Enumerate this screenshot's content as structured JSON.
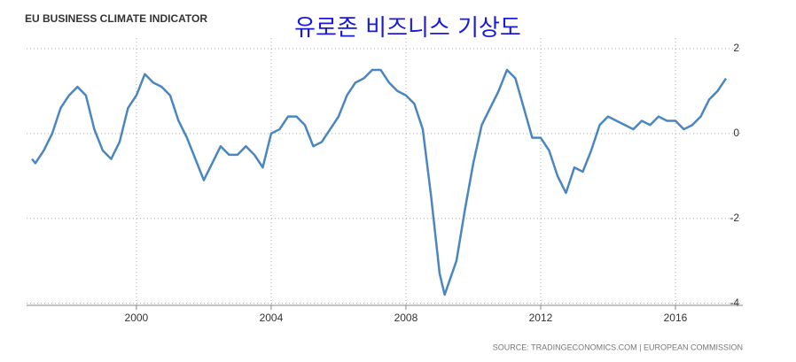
{
  "chart_data": {
    "type": "line",
    "title": "EU BUSINESS CLIMATE INDICATOR",
    "subtitle": "유로존 비즈니스 기상도",
    "source": "SOURCE: TRADINGECONOMICS.COM  |  EUROPEAN COMMISSION",
    "x": [
      1996.9,
      1997.0,
      1997.25,
      1997.5,
      1997.75,
      1998.0,
      1998.25,
      1998.5,
      1998.75,
      1999.0,
      1999.25,
      1999.5,
      1999.75,
      2000.0,
      2000.25,
      2000.5,
      2000.75,
      2001.0,
      2001.25,
      2001.5,
      2001.75,
      2002.0,
      2002.25,
      2002.5,
      2002.75,
      2003.0,
      2003.25,
      2003.5,
      2003.75,
      2004.0,
      2004.25,
      2004.5,
      2004.75,
      2005.0,
      2005.25,
      2005.5,
      2005.75,
      2006.0,
      2006.25,
      2006.5,
      2006.75,
      2007.0,
      2007.25,
      2007.5,
      2007.75,
      2008.0,
      2008.25,
      2008.5,
      2008.75,
      2009.0,
      2009.15,
      2009.5,
      2009.75,
      2010.0,
      2010.25,
      2010.5,
      2010.75,
      2011.0,
      2011.25,
      2011.5,
      2011.75,
      2012.0,
      2012.25,
      2012.5,
      2012.75,
      2013.0,
      2013.25,
      2013.5,
      2013.75,
      2014.0,
      2014.25,
      2014.5,
      2014.75,
      2015.0,
      2015.25,
      2015.5,
      2015.75,
      2016.0,
      2016.25,
      2016.5,
      2016.75,
      2017.0,
      2017.25,
      2017.5
    ],
    "series": [
      {
        "name": "EU Business Climate Indicator",
        "color": "#4a86c0",
        "values": [
          -0.6,
          -0.7,
          -0.4,
          0.0,
          0.6,
          0.9,
          1.1,
          0.9,
          0.1,
          -0.4,
          -0.6,
          -0.2,
          0.6,
          0.9,
          1.4,
          1.2,
          1.1,
          0.9,
          0.3,
          -0.1,
          -0.6,
          -1.1,
          -0.7,
          -0.3,
          -0.5,
          -0.5,
          -0.3,
          -0.5,
          -0.8,
          0.0,
          0.1,
          0.4,
          0.4,
          0.2,
          -0.3,
          -0.2,
          0.1,
          0.4,
          0.9,
          1.2,
          1.3,
          1.5,
          1.5,
          1.2,
          1.0,
          0.9,
          0.7,
          0.1,
          -1.5,
          -3.3,
          -3.8,
          -3.0,
          -1.8,
          -0.7,
          0.2,
          0.6,
          1.0,
          1.5,
          1.3,
          0.6,
          -0.1,
          -0.1,
          -0.4,
          -1.0,
          -1.4,
          -0.8,
          -0.9,
          -0.4,
          0.2,
          0.4,
          0.3,
          0.2,
          0.1,
          0.3,
          0.2,
          0.4,
          0.3,
          0.3,
          0.1,
          0.2,
          0.4,
          0.8,
          1.0,
          1.3
        ]
      }
    ],
    "xlim": [
      1996.74,
      2018.0
    ],
    "xticks": [
      2000,
      2004,
      2008,
      2012,
      2016
    ],
    "ylim": [
      -4.05,
      2.25
    ],
    "yticks": [
      2,
      0,
      -2,
      -4
    ],
    "grid": true
  }
}
